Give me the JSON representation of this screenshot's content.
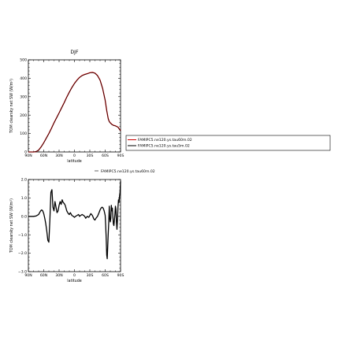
{
  "chart_data": [
    {
      "type": "line",
      "title": "DJF",
      "xlabel": "latitude",
      "ylabel": "TOM clearsky net SW (W/m²)",
      "xlim": [
        -90,
        90
      ],
      "ylim": [
        0,
        500
      ],
      "x_ticks": [
        -90,
        -60,
        -30,
        0,
        30,
        60,
        90
      ],
      "x_tick_labels": [
        "90N",
        "60N",
        "30N",
        "0",
        "30S",
        "60S",
        "90S"
      ],
      "y_ticks": [
        0,
        100,
        200,
        300,
        400,
        500
      ],
      "y_tick_labels": [
        "0",
        "100",
        "200",
        "300",
        "400",
        "500"
      ],
      "legend": {
        "placement": "right",
        "entries": [
          {
            "label": "FAMIPC5.ne120.ys.tau60m.02",
            "color": "#cc0000"
          },
          {
            "label": "FAMIPC5.ne120.ys.tau5m.02",
            "color": "#000000"
          }
        ]
      },
      "series": [
        {
          "name": "FAMIPC5.ne120.ys.tau60m.02",
          "color": "#cc0000",
          "x": [
            -90,
            -80,
            -75,
            -70,
            -65,
            -60,
            -55,
            -50,
            -45,
            -40,
            -35,
            -30,
            -25,
            -20,
            -15,
            -10,
            -5,
            0,
            5,
            10,
            15,
            20,
            25,
            30,
            35,
            40,
            45,
            50,
            55,
            60,
            63,
            66,
            68,
            70,
            73,
            76,
            80,
            85,
            90
          ],
          "y": [
            0,
            0,
            2,
            10,
            28,
            50,
            75,
            100,
            128,
            158,
            185,
            212,
            240,
            268,
            298,
            325,
            350,
            372,
            390,
            405,
            415,
            421,
            425,
            430,
            432,
            428,
            415,
            390,
            345,
            280,
            225,
            180,
            165,
            158,
            150,
            145,
            142,
            135,
            115
          ]
        },
        {
          "name": "FAMIPC5.ne120.ys.tau5m.02",
          "color": "#000000",
          "x": [
            -90,
            -80,
            -75,
            -70,
            -65,
            -60,
            -55,
            -50,
            -45,
            -40,
            -35,
            -30,
            -25,
            -20,
            -15,
            -10,
            -5,
            0,
            5,
            10,
            15,
            20,
            25,
            30,
            35,
            40,
            45,
            50,
            55,
            60,
            63,
            66,
            68,
            70,
            73,
            76,
            80,
            85,
            90
          ],
          "y": [
            0,
            0,
            2,
            10,
            27,
            49,
            74,
            99,
            127,
            157,
            184,
            211,
            239,
            267,
            297,
            324,
            349,
            371,
            389,
            404,
            414,
            420,
            424,
            429,
            431,
            427,
            414,
            389,
            345,
            281,
            226,
            179,
            164,
            157,
            149,
            144,
            141,
            134,
            113
          ]
        }
      ]
    },
    {
      "type": "line",
      "title": "",
      "xlabel": "latitude",
      "ylabel": "TOM clearsky net SW (W/m²)",
      "xlim": [
        -90,
        90
      ],
      "ylim": [
        -3.0,
        2.0
      ],
      "x_ticks": [
        -90,
        -60,
        -30,
        0,
        30,
        60,
        90
      ],
      "x_tick_labels": [
        "90N",
        "60N",
        "30N",
        "0",
        "30S",
        "60S",
        "90S"
      ],
      "y_ticks": [
        -3.0,
        -2.0,
        -1.0,
        0.0,
        1.0,
        2.0
      ],
      "y_tick_labels": [
        "−3.0",
        "−2.0",
        "−1.0",
        "0.0",
        "1.0",
        "2.0"
      ],
      "legend": {
        "placement": "top-right",
        "entries": [
          {
            "label": "FAMIPC5.ne120.ys.tau60m.02",
            "color": "#000000"
          }
        ]
      },
      "series": [
        {
          "name": "FAMIPC5.ne120.ys.tau60m.02",
          "color": "#000000",
          "x": [
            -90,
            -80,
            -75,
            -70,
            -68,
            -66,
            -64,
            -62,
            -60,
            -58,
            -56,
            -54,
            -52,
            -50,
            -48,
            -46,
            -44,
            -42,
            -40,
            -38,
            -36,
            -34,
            -32,
            -30,
            -28,
            -26,
            -24,
            -22,
            -20,
            -18,
            -15,
            -12,
            -10,
            -8,
            -5,
            -2,
            0,
            2,
            5,
            8,
            10,
            12,
            15,
            18,
            20,
            22,
            25,
            28,
            30,
            32,
            35,
            38,
            40,
            42,
            45,
            48,
            50,
            52,
            54,
            56,
            58,
            60,
            61,
            62,
            63,
            64,
            65,
            66,
            67,
            68,
            69,
            70,
            71,
            72,
            73,
            74,
            75,
            76,
            77,
            78,
            79,
            80,
            81,
            82,
            83,
            84,
            85,
            86,
            87,
            88,
            89,
            90
          ],
          "y": [
            0,
            0,
            0.02,
            0.1,
            0.2,
            0.3,
            0.35,
            0.3,
            0.15,
            -0.1,
            -0.4,
            -0.8,
            -1.3,
            -1.4,
            -0.2,
            1.3,
            1.45,
            0.5,
            0.3,
            0.8,
            0.5,
            0.2,
            0.3,
            0.6,
            0.8,
            0.65,
            0.9,
            0.75,
            0.7,
            0.6,
            0.3,
            0.15,
            0.1,
            0.2,
            0.05,
            0.0,
            -0.05,
            0.0,
            0.05,
            0.1,
            0.0,
            0.05,
            0.1,
            0.05,
            0.0,
            -0.1,
            0.0,
            -0.05,
            0.05,
            0.15,
            0.05,
            -0.15,
            -0.2,
            -0.1,
            0.0,
            0.2,
            0.35,
            0.45,
            0.5,
            0.45,
            0.3,
            0.05,
            -0.5,
            -1.2,
            -2.1,
            -2.3,
            -1.6,
            -0.9,
            -0.3,
            0.55,
            -0.1,
            -0.3,
            -0.1,
            0.6,
            0.3,
            0.45,
            0.0,
            -0.4,
            -0.5,
            -0.2,
            0.1,
            0.55,
            0.4,
            -0.3,
            -0.7,
            -0.2,
            0.5,
            0.9,
            0.75,
            1.1,
            1.3,
            1.9
          ]
        }
      ]
    }
  ]
}
